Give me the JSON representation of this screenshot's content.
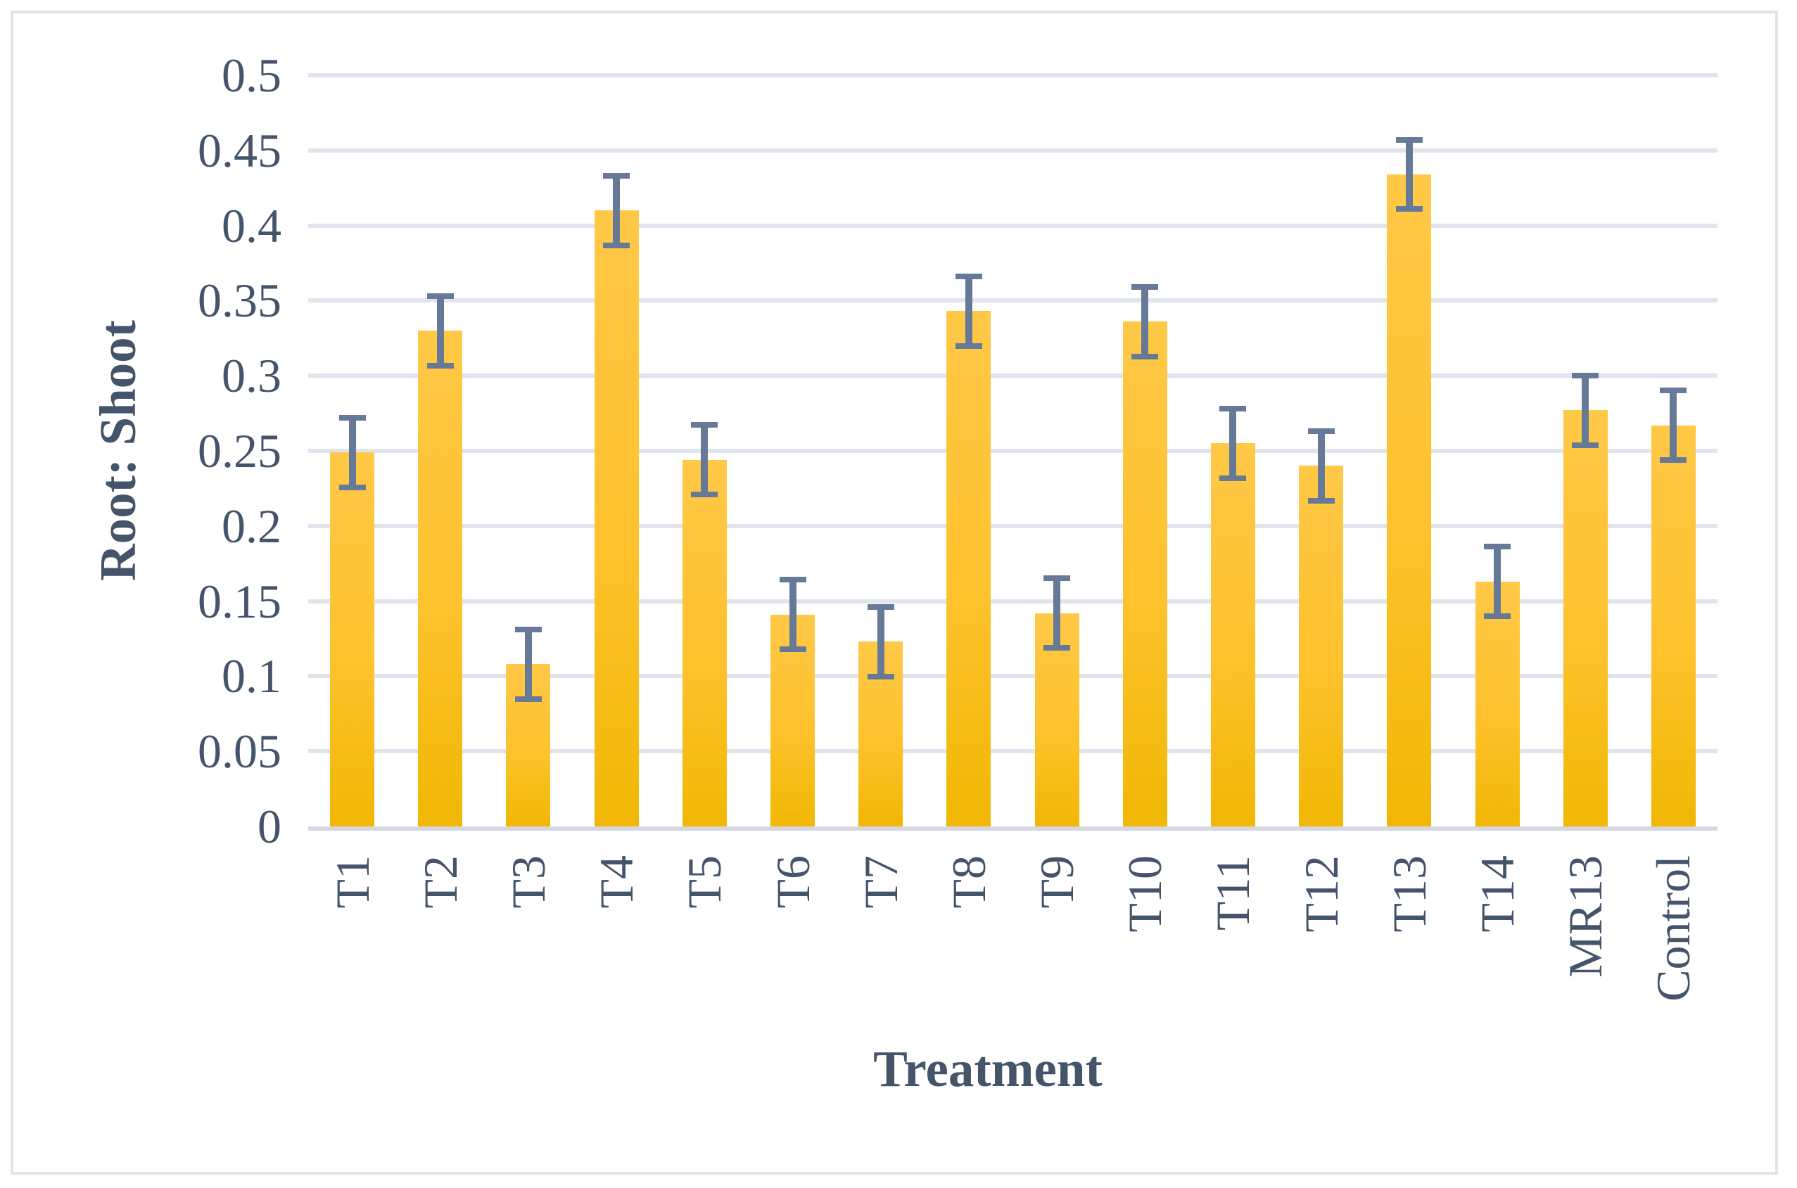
{
  "chart_data": {
    "type": "bar",
    "title": "",
    "xlabel": "Treatment",
    "ylabel": "Root: Shoot",
    "categories": [
      "T1",
      "T2",
      "T3",
      "T4",
      "T5",
      "T6",
      "T7",
      "T8",
      "T9",
      "T10",
      "T11",
      "T12",
      "T13",
      "T14",
      "MR13",
      "Control"
    ],
    "values": [
      0.249,
      0.33,
      0.108,
      0.41,
      0.244,
      0.141,
      0.123,
      0.343,
      0.142,
      0.336,
      0.255,
      0.24,
      0.434,
      0.163,
      0.277,
      0.267
    ],
    "error_bars": {
      "type": "symmetric",
      "values": [
        0.025,
        0.025,
        0.025,
        0.025,
        0.025,
        0.025,
        0.025,
        0.025,
        0.025,
        0.025,
        0.025,
        0.025,
        0.025,
        0.025,
        0.025,
        0.025
      ],
      "style": "caps",
      "color": "#677998"
    },
    "ylim": [
      0,
      0.5
    ],
    "ytick_values": [
      0,
      0.05,
      0.1,
      0.15,
      0.2,
      0.25,
      0.3,
      0.35,
      0.4,
      0.45,
      0.5
    ],
    "ytick_labels": [
      "0",
      "0.05",
      "0.1",
      "0.15",
      "0.2",
      "0.25",
      "0.3",
      "0.35",
      "0.4",
      "0.45",
      "0.5"
    ],
    "grid": true,
    "legend": false,
    "x_labels_rotated_90ccw": true,
    "colors": {
      "bar_top": "#ffc847",
      "bar_bottom": "#f1b704",
      "error_bar": "#677998",
      "gridline": "#e0e4ec",
      "axis_baseline": "#d3d8e2",
      "text": "#44546a",
      "figure_border": "#e0e3eb",
      "background": "#ffffff"
    }
  }
}
